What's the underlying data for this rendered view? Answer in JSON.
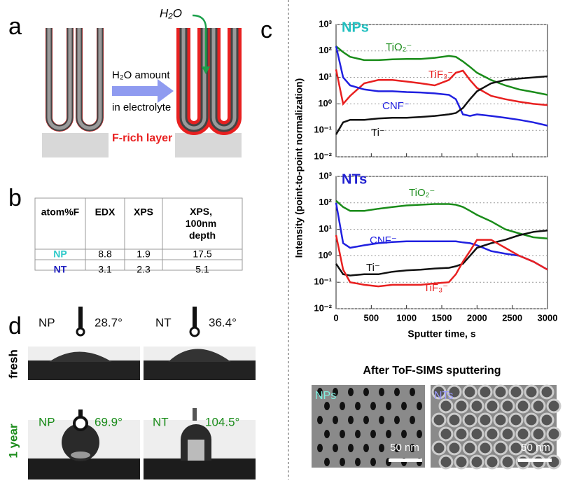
{
  "panels": {
    "a": "a",
    "b": "b",
    "c": "c",
    "d": "d"
  },
  "diagram": {
    "water": "H₂O",
    "arrow_line1": "H₂O amount",
    "arrow_line2": "in electrolyte",
    "layer": "F-rich layer"
  },
  "table": {
    "header": [
      "atom%F",
      "EDX",
      "XPS",
      "XPS, 100nm depth"
    ],
    "rows": [
      [
        "NP",
        "8.8",
        "1.9",
        "17.5"
      ],
      [
        "NT",
        "3.1",
        "2.3",
        "5.1"
      ]
    ]
  },
  "contact": {
    "rows": [
      "fresh",
      "1 year"
    ],
    "cells": [
      [
        "NP",
        "28.7°",
        "NT",
        "36.4°"
      ],
      [
        "NP",
        "69.9°",
        "NT",
        "104.5°"
      ]
    ]
  },
  "figure": {
    "ylabel": "Intensity (point-to-point normalization)"
  },
  "images": {
    "title": "After ToF-SIMS sputtering",
    "labels": [
      "NPs",
      "NTs"
    ],
    "scales": [
      "50 nm",
      "50 nm"
    ]
  },
  "chart_data": [
    {
      "type": "line",
      "title": "NPs",
      "log_y": true,
      "grid": true,
      "x": [
        0,
        100,
        200,
        400,
        600,
        800,
        1000,
        1200,
        1400,
        1600,
        1700,
        1800,
        1900,
        2000,
        2200,
        2400,
        2600,
        2800,
        3000
      ],
      "xlim": [
        0,
        3000
      ],
      "xticks": [
        0,
        500,
        1000,
        1500,
        2000,
        2500,
        3000
      ],
      "ylim": [
        0.01,
        1000
      ],
      "yticks": [
        {
          "value": 0.01,
          "label": "10⁻²"
        },
        {
          "value": 0.1,
          "label": "10⁻¹"
        },
        {
          "value": 1,
          "label": "10⁰"
        },
        {
          "value": 10,
          "label": "10¹"
        },
        {
          "value": 100,
          "label": "10²"
        },
        {
          "value": 1000,
          "label": "10³"
        }
      ],
      "series": [
        {
          "name": "TiO₂⁻",
          "color": "#1a8c1a",
          "values": [
            150,
            90,
            60,
            45,
            45,
            48,
            50,
            50,
            55,
            65,
            60,
            40,
            25,
            15,
            8,
            5,
            3.5,
            2.8,
            2.2
          ]
        },
        {
          "name": "TiF₃⁻",
          "color": "#e82020",
          "values": [
            20,
            1,
            2,
            6,
            8,
            8,
            7,
            6,
            5,
            8,
            15,
            18,
            8,
            4,
            2,
            1.5,
            1.2,
            1,
            0.9
          ]
        },
        {
          "name": "CNF⁻",
          "color": "#2020e0",
          "values": [
            150,
            10,
            5,
            3.5,
            3,
            3,
            2.8,
            2.7,
            2.5,
            2.2,
            1.5,
            0.4,
            0.35,
            0.4,
            0.35,
            0.3,
            0.25,
            0.2,
            0.15
          ]
        },
        {
          "name": "Ti⁻",
          "color": "#111111",
          "values": [
            0.07,
            0.2,
            0.25,
            0.25,
            0.28,
            0.3,
            0.3,
            0.32,
            0.35,
            0.4,
            0.45,
            0.7,
            1.5,
            3,
            6,
            8,
            9,
            10,
            11
          ]
        }
      ]
    },
    {
      "type": "line",
      "title": "NTs",
      "log_y": true,
      "grid": true,
      "xlabel": "Sputter time, s",
      "x": [
        0,
        100,
        200,
        400,
        600,
        800,
        1000,
        1200,
        1400,
        1600,
        1700,
        1800,
        1900,
        2000,
        2200,
        2400,
        2600,
        2800,
        3000
      ],
      "xlim": [
        0,
        3000
      ],
      "xticks": [
        0,
        500,
        1000,
        1500,
        2000,
        2500,
        3000
      ],
      "ylim": [
        0.01,
        1000
      ],
      "yticks": [
        {
          "value": 0.01,
          "label": "10⁻²"
        },
        {
          "value": 0.1,
          "label": "10⁻¹"
        },
        {
          "value": 1,
          "label": "10⁰"
        },
        {
          "value": 10,
          "label": "10¹"
        },
        {
          "value": 100,
          "label": "10²"
        },
        {
          "value": 1000,
          "label": "10³"
        }
      ],
      "series": [
        {
          "name": "TiO₂⁻",
          "color": "#1a8c1a",
          "values": [
            120,
            70,
            50,
            50,
            60,
            70,
            80,
            85,
            90,
            90,
            85,
            70,
            50,
            35,
            20,
            10,
            7,
            5,
            4.5
          ]
        },
        {
          "name": "CNF⁻",
          "color": "#2020e0",
          "values": [
            100,
            3,
            2,
            2.5,
            3,
            3.3,
            3.5,
            3.5,
            3.5,
            3.5,
            3.5,
            3.2,
            3,
            2.5,
            1.5,
            1.2,
            1,
            0.6,
            0.3
          ]
        },
        {
          "name": "Ti⁻",
          "color": "#111111",
          "values": [
            0.5,
            0.2,
            0.18,
            0.2,
            0.2,
            0.25,
            0.28,
            0.3,
            0.33,
            0.35,
            0.4,
            0.5,
            1,
            2,
            3,
            4,
            6,
            8,
            9
          ]
        },
        {
          "name": "TiF₃⁻",
          "color": "#e82020",
          "values": [
            6,
            0.3,
            0.1,
            0.08,
            0.07,
            0.08,
            0.08,
            0.08,
            0.09,
            0.1,
            0.2,
            0.6,
            1.5,
            4,
            4,
            2,
            1,
            0.6,
            0.3
          ]
        }
      ]
    }
  ]
}
